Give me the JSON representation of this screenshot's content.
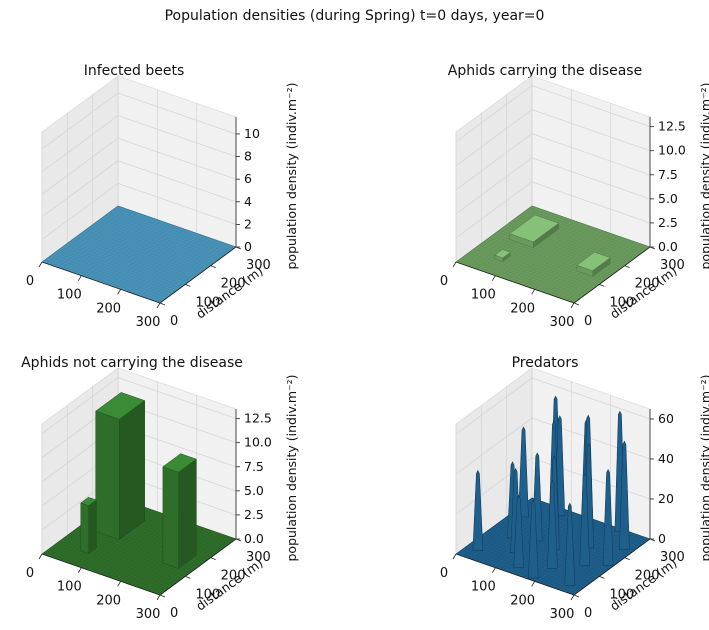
{
  "figure": {
    "suptitle": "Population densities (during Spring) t=0 days, year=0"
  },
  "chart_data": [
    {
      "type": "surface3d",
      "title": "Infected beets",
      "zlabel": "population density (indiv.m⁻²)",
      "ylabel": "distance (m)",
      "x_ticks": [
        "0",
        "100",
        "200",
        "300"
      ],
      "y_ticks": [
        "0",
        "100",
        "200",
        "300"
      ],
      "z_ticks": [
        "0",
        "2",
        "4",
        "6",
        "8",
        "10"
      ],
      "xlim": [
        0,
        300
      ],
      "ylim": [
        0,
        300
      ],
      "zlim": [
        0,
        11.5
      ],
      "color": "#4a93b8",
      "edge_color": "#2f6f8f",
      "surface": "flat",
      "peaks": []
    },
    {
      "type": "surface3d",
      "title": "Aphids carrying the disease",
      "zlabel": "population density (indiv.m⁻²)",
      "ylabel": "distance (m)",
      "x_ticks": [
        "0",
        "100",
        "200",
        "300"
      ],
      "y_ticks": [
        "0",
        "100",
        "200",
        "300"
      ],
      "z_ticks": [
        "0.0",
        "2.5",
        "5.0",
        "7.5",
        "10.0",
        "12.5"
      ],
      "xlim": [
        0,
        300
      ],
      "ylim": [
        0,
        300
      ],
      "zlim": [
        0,
        13.5
      ],
      "color": "#6a9a5e",
      "edge_color": "#4c7a44",
      "surface": "low-blocks",
      "peaks": [
        {
          "x0": 40,
          "x1": 100,
          "y0": 150,
          "y1": 250,
          "z": 0.6
        },
        {
          "x0": 230,
          "x1": 270,
          "y0": 120,
          "y1": 190,
          "z": 0.6
        },
        {
          "x0": 60,
          "x1": 80,
          "y0": 60,
          "y1": 90,
          "z": 0.4
        }
      ]
    },
    {
      "type": "surface3d",
      "title": "Aphids not carrying the disease",
      "zlabel": "population density (indiv.m⁻²)",
      "ylabel": "distance (m)",
      "x_ticks": [
        "0",
        "100",
        "200",
        "300"
      ],
      "y_ticks": [
        "0",
        "100",
        "200",
        "300"
      ],
      "z_ticks": [
        "0.0",
        "2.5",
        "5.0",
        "7.5",
        "10.0",
        "12.5"
      ],
      "xlim": [
        0,
        300
      ],
      "ylim": [
        0,
        300
      ],
      "zlim": [
        0,
        13.5
      ],
      "color": "#2f6e2a",
      "edge_color": "#1f4f1c",
      "surface": "blocks",
      "peaks": [
        {
          "x0": 40,
          "x1": 100,
          "y0": 150,
          "y1": 250,
          "z": 12.5
        },
        {
          "x0": 230,
          "x1": 270,
          "y0": 120,
          "y1": 190,
          "z": 10.0
        },
        {
          "x0": 60,
          "x1": 80,
          "y0": 60,
          "y1": 90,
          "z": 5.0
        }
      ]
    },
    {
      "type": "surface3d",
      "title": "Predators",
      "zlabel": "population density (indiv.m⁻²)",
      "ylabel": "distance (m)",
      "x_ticks": [
        "0",
        "100",
        "200",
        "300"
      ],
      "y_ticks": [
        "0",
        "100",
        "200",
        "300"
      ],
      "z_ticks": [
        "0",
        "20",
        "40",
        "60"
      ],
      "xlim": [
        0,
        300
      ],
      "ylim": [
        0,
        300
      ],
      "zlim": [
        0,
        65
      ],
      "color": "#1f5f8b",
      "edge_color": "#123e5e",
      "surface": "spikes",
      "peaks": [
        {
          "x": 30,
          "y": 40,
          "z": 40
        },
        {
          "x": 30,
          "y": 220,
          "z": 45
        },
        {
          "x": 60,
          "y": 130,
          "z": 38
        },
        {
          "x": 90,
          "y": 270,
          "z": 50
        },
        {
          "x": 100,
          "y": 80,
          "z": 42
        },
        {
          "x": 120,
          "y": 200,
          "z": 56
        },
        {
          "x": 140,
          "y": 30,
          "z": 36
        },
        {
          "x": 160,
          "y": 140,
          "z": 47
        },
        {
          "x": 175,
          "y": 250,
          "z": 58
        },
        {
          "x": 200,
          "y": 70,
          "z": 44
        },
        {
          "x": 215,
          "y": 190,
          "z": 52
        },
        {
          "x": 230,
          "y": 290,
          "z": 60
        },
        {
          "x": 250,
          "y": 120,
          "z": 46
        },
        {
          "x": 270,
          "y": 30,
          "z": 41
        },
        {
          "x": 280,
          "y": 230,
          "z": 54
        },
        {
          "x": 145,
          "y": 290,
          "z": 50
        },
        {
          "x": 60,
          "y": 300,
          "z": 55
        },
        {
          "x": 190,
          "y": 10,
          "z": 39
        },
        {
          "x": 290,
          "y": 150,
          "z": 48
        },
        {
          "x": 110,
          "y": 150,
          "z": 44
        }
      ]
    }
  ]
}
